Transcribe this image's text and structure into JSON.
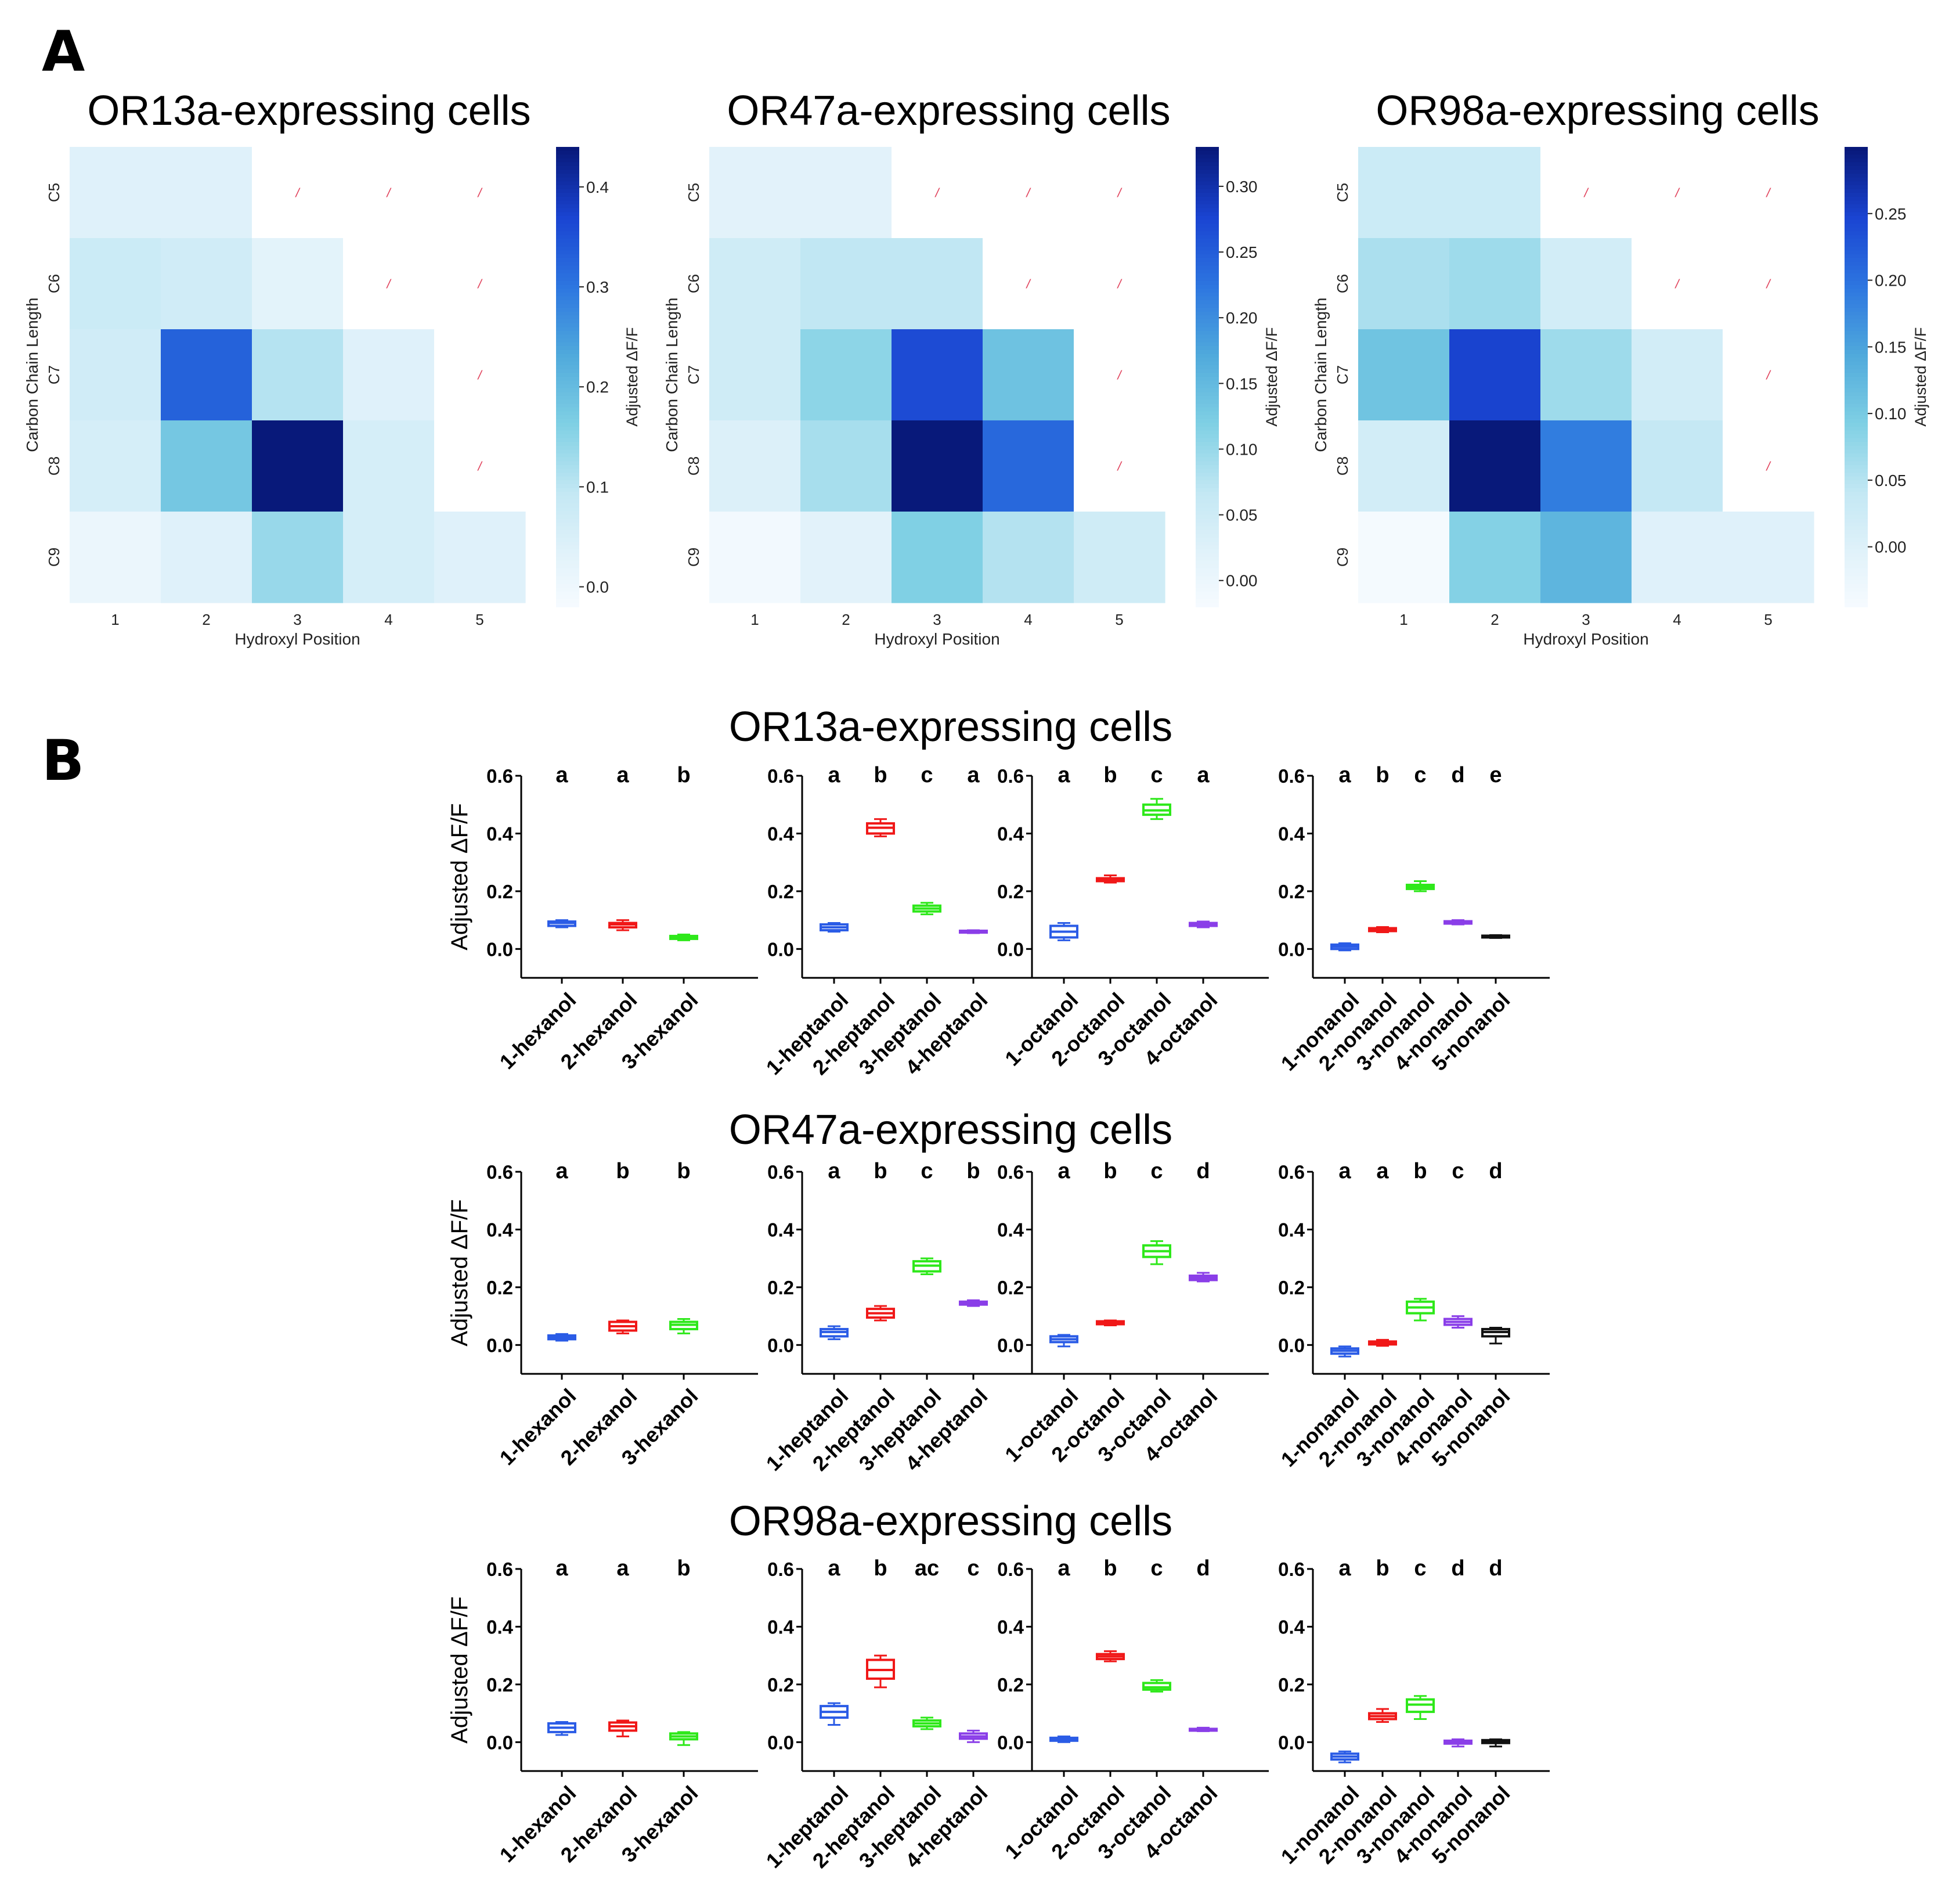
{
  "panels": {
    "A": "A",
    "B": "B"
  },
  "colors": {
    "heatmap_low": "#f7fbff",
    "heatmap_high": "#08197a",
    "missing_mark": "#e0405a",
    "series": [
      "#2b5ce6",
      "#f01818",
      "#2ee81a",
      "#8a3ee8",
      "#111111"
    ]
  },
  "chart_data": [
    {
      "type": "heatmap",
      "panel": "A",
      "title": "OR13a-expressing cells",
      "xlabel": "Hydroxyl Position",
      "ylabel": "Carbon Chain Length",
      "x_ticks": [
        "1",
        "2",
        "3",
        "4",
        "5"
      ],
      "y_ticks": [
        "C5",
        "C6",
        "C7",
        "C8",
        "C9"
      ],
      "colorbar_label": "Adjusted ΔF/F",
      "colorbar_ticks": [
        0.0,
        0.1,
        0.2,
        0.3,
        0.4
      ],
      "colorbar_tick_labels": [
        "0.0",
        "0.1",
        "0.2",
        "0.3",
        "0.4"
      ],
      "vmin": -0.02,
      "vmax": 0.44,
      "matrix": [
        [
          0.04,
          0.04,
          null,
          null,
          null
        ],
        [
          0.08,
          0.07,
          0.03,
          null,
          null
        ],
        [
          0.07,
          0.33,
          0.11,
          0.04,
          null
        ],
        [
          0.06,
          0.18,
          0.44,
          0.06,
          null
        ],
        [
          0.01,
          0.04,
          0.14,
          0.06,
          0.04
        ]
      ]
    },
    {
      "type": "heatmap",
      "panel": "A",
      "title": "OR47a-expressing cells",
      "xlabel": "Hydroxyl Position",
      "ylabel": "Carbon Chain Length",
      "x_ticks": [
        "1",
        "2",
        "3",
        "4",
        "5"
      ],
      "y_ticks": [
        "C5",
        "C6",
        "C7",
        "C8",
        "C9"
      ],
      "colorbar_label": "Adjusted ΔF/F",
      "colorbar_ticks": [
        0.0,
        0.05,
        0.1,
        0.15,
        0.2,
        0.25,
        0.3
      ],
      "colorbar_tick_labels": [
        "0.00",
        "0.05",
        "0.10",
        "0.15",
        "0.20",
        "0.25",
        "0.30"
      ],
      "vmin": -0.02,
      "vmax": 0.33,
      "matrix": [
        [
          0.02,
          0.02,
          null,
          null,
          null
        ],
        [
          0.05,
          0.07,
          0.07,
          null,
          null
        ],
        [
          0.05,
          0.11,
          0.27,
          0.14,
          null
        ],
        [
          0.03,
          0.09,
          0.33,
          0.24,
          null
        ],
        [
          -0.01,
          0.02,
          0.12,
          0.08,
          0.05
        ]
      ]
    },
    {
      "type": "heatmap",
      "panel": "A",
      "title": "OR98a-expressing cells",
      "xlabel": "Hydroxyl Position",
      "ylabel": "Carbon Chain Length",
      "x_ticks": [
        "1",
        "2",
        "3",
        "4",
        "5"
      ],
      "y_ticks": [
        "C5",
        "C6",
        "C7",
        "C8",
        "C9"
      ],
      "colorbar_label": "Adjusted ΔF/F",
      "colorbar_ticks": [
        0.0,
        0.05,
        0.1,
        0.15,
        0.2,
        0.25
      ],
      "colorbar_tick_labels": [
        "0.00",
        "0.05",
        "0.10",
        "0.15",
        "0.20",
        "0.25"
      ],
      "vmin": -0.045,
      "vmax": 0.3,
      "matrix": [
        [
          0.03,
          0.03,
          null,
          null,
          null
        ],
        [
          0.06,
          0.07,
          0.02,
          null,
          null
        ],
        [
          0.11,
          0.25,
          0.07,
          0.02,
          null
        ],
        [
          0.02,
          0.3,
          0.19,
          0.04,
          null
        ],
        [
          -0.04,
          0.09,
          0.13,
          0.0,
          0.0
        ]
      ]
    },
    {
      "type": "boxplot",
      "panel": "B",
      "title": "OR13a-expressing cells",
      "ylabel": "Adjusted ΔF/F",
      "ylim": [
        -0.1,
        0.6
      ],
      "yticks": [
        "0.0",
        "0.2",
        "0.4",
        "0.6"
      ],
      "groups": [
        {
          "categories": [
            "1-hexanol",
            "2-hexanol",
            "3-hexanol"
          ],
          "letters": [
            "a",
            "a",
            "b"
          ],
          "boxes": [
            [
              0.075,
              0.08,
              0.09,
              0.095,
              0.1
            ],
            [
              0.065,
              0.075,
              0.085,
              0.09,
              0.1
            ],
            [
              0.03,
              0.035,
              0.04,
              0.045,
              0.05
            ]
          ]
        },
        {
          "categories": [
            "1-heptanol",
            "2-heptanol",
            "3-heptanol",
            "4-heptanol"
          ],
          "letters": [
            "a",
            "b",
            "c",
            "a"
          ],
          "boxes": [
            [
              0.06,
              0.065,
              0.075,
              0.085,
              0.09
            ],
            [
              0.39,
              0.4,
              0.42,
              0.435,
              0.45
            ],
            [
              0.12,
              0.13,
              0.14,
              0.15,
              0.16
            ],
            [
              0.055,
              0.057,
              0.06,
              0.063,
              0.065
            ]
          ]
        },
        {
          "categories": [
            "1-octanol",
            "2-octanol",
            "3-octanol",
            "4-octanol"
          ],
          "letters": [
            "a",
            "b",
            "c",
            "a"
          ],
          "boxes": [
            [
              0.03,
              0.04,
              0.06,
              0.08,
              0.09
            ],
            [
              0.23,
              0.235,
              0.24,
              0.245,
              0.255
            ],
            [
              0.45,
              0.465,
              0.48,
              0.5,
              0.52
            ],
            [
              0.075,
              0.08,
              0.085,
              0.09,
              0.095
            ]
          ]
        },
        {
          "categories": [
            "1-nonanol",
            "2-nonanol",
            "3-nonanol",
            "4-nonanol",
            "5-nonanol"
          ],
          "letters": [
            "a",
            "b",
            "c",
            "d",
            "e"
          ],
          "boxes": [
            [
              -0.005,
              0.0,
              0.008,
              0.015,
              0.02
            ],
            [
              0.058,
              0.062,
              0.067,
              0.072,
              0.076
            ],
            [
              0.2,
              0.208,
              0.215,
              0.222,
              0.235
            ],
            [
              0.085,
              0.088,
              0.092,
              0.096,
              0.1
            ],
            [
              0.038,
              0.04,
              0.043,
              0.046,
              0.048
            ]
          ]
        }
      ]
    },
    {
      "type": "boxplot",
      "panel": "B",
      "title": "OR47a-expressing cells",
      "ylabel": "Adjusted ΔF/F",
      "ylim": [
        -0.1,
        0.6
      ],
      "yticks": [
        "0.0",
        "0.2",
        "0.4",
        "0.6"
      ],
      "groups": [
        {
          "categories": [
            "1-hexanol",
            "2-hexanol",
            "3-hexanol"
          ],
          "letters": [
            "a",
            "b",
            "b"
          ],
          "boxes": [
            [
              0.015,
              0.02,
              0.027,
              0.033,
              0.038
            ],
            [
              0.04,
              0.05,
              0.065,
              0.08,
              0.085
            ],
            [
              0.04,
              0.055,
              0.07,
              0.08,
              0.09
            ]
          ]
        },
        {
          "categories": [
            "1-heptanol",
            "2-heptanol",
            "3-heptanol",
            "4-heptanol"
          ],
          "letters": [
            "a",
            "b",
            "c",
            "b"
          ],
          "boxes": [
            [
              0.02,
              0.03,
              0.045,
              0.055,
              0.065
            ],
            [
              0.085,
              0.095,
              0.11,
              0.125,
              0.135
            ],
            [
              0.245,
              0.255,
              0.275,
              0.29,
              0.3
            ],
            [
              0.135,
              0.14,
              0.145,
              0.15,
              0.155
            ]
          ]
        },
        {
          "categories": [
            "1-octanol",
            "2-octanol",
            "3-octanol",
            "4-octanol"
          ],
          "letters": [
            "a",
            "b",
            "c",
            "d"
          ],
          "boxes": [
            [
              -0.005,
              0.01,
              0.02,
              0.03,
              0.035
            ],
            [
              0.068,
              0.072,
              0.077,
              0.082,
              0.085
            ],
            [
              0.28,
              0.305,
              0.325,
              0.345,
              0.36
            ],
            [
              0.22,
              0.225,
              0.233,
              0.24,
              0.25
            ]
          ]
        },
        {
          "categories": [
            "1-nonanol",
            "2-nonanol",
            "3-nonanol",
            "4-nonanol",
            "5-nonanol"
          ],
          "letters": [
            "a",
            "a",
            "b",
            "c",
            "d"
          ],
          "boxes": [
            [
              -0.04,
              -0.03,
              -0.02,
              -0.012,
              -0.005
            ],
            [
              -0.003,
              0.002,
              0.007,
              0.012,
              0.018
            ],
            [
              0.085,
              0.11,
              0.13,
              0.15,
              0.16
            ],
            [
              0.06,
              0.07,
              0.08,
              0.09,
              0.1
            ],
            [
              0.005,
              0.03,
              0.045,
              0.055,
              0.06
            ]
          ]
        }
      ]
    },
    {
      "type": "boxplot",
      "panel": "B",
      "title": "OR98a-expressing cells",
      "ylabel": "Adjusted ΔF/F",
      "ylim": [
        -0.1,
        0.6
      ],
      "yticks": [
        "0.0",
        "0.2",
        "0.4",
        "0.6"
      ],
      "groups": [
        {
          "categories": [
            "1-hexanol",
            "2-hexanol",
            "3-hexanol"
          ],
          "letters": [
            "a",
            "a",
            "b"
          ],
          "boxes": [
            [
              0.025,
              0.035,
              0.05,
              0.065,
              0.07
            ],
            [
              0.02,
              0.04,
              0.055,
              0.068,
              0.075
            ],
            [
              -0.01,
              0.01,
              0.02,
              0.03,
              0.035
            ]
          ]
        },
        {
          "categories": [
            "1-heptanol",
            "2-heptanol",
            "3-heptanol",
            "4-heptanol"
          ],
          "letters": [
            "a",
            "b",
            "ac",
            "c"
          ],
          "boxes": [
            [
              0.06,
              0.085,
              0.105,
              0.125,
              0.135
            ],
            [
              0.19,
              0.22,
              0.25,
              0.285,
              0.3
            ],
            [
              0.045,
              0.055,
              0.065,
              0.075,
              0.085
            ],
            [
              0.0,
              0.012,
              0.02,
              0.03,
              0.04
            ]
          ]
        },
        {
          "categories": [
            "1-octanol",
            "2-octanol",
            "3-octanol",
            "4-octanol"
          ],
          "letters": [
            "a",
            "b",
            "c",
            "d"
          ],
          "boxes": [
            [
              0.0,
              0.005,
              0.01,
              0.015,
              0.02
            ],
            [
              0.28,
              0.288,
              0.297,
              0.305,
              0.315
            ],
            [
              0.175,
              0.182,
              0.19,
              0.205,
              0.215
            ],
            [
              0.038,
              0.04,
              0.043,
              0.046,
              0.05
            ]
          ]
        },
        {
          "categories": [
            "1-nonanol",
            "2-nonanol",
            "3-nonanol",
            "4-nonanol",
            "5-nonanol"
          ],
          "letters": [
            "a",
            "b",
            "c",
            "d",
            "d"
          ],
          "boxes": [
            [
              -0.07,
              -0.06,
              -0.05,
              -0.04,
              -0.032
            ],
            [
              0.07,
              0.08,
              0.09,
              0.1,
              0.115
            ],
            [
              0.08,
              0.105,
              0.13,
              0.148,
              0.16
            ],
            [
              -0.015,
              -0.005,
              0.0,
              0.005,
              0.01
            ],
            [
              -0.015,
              -0.003,
              0.003,
              0.007,
              0.01
            ]
          ]
        }
      ]
    }
  ]
}
